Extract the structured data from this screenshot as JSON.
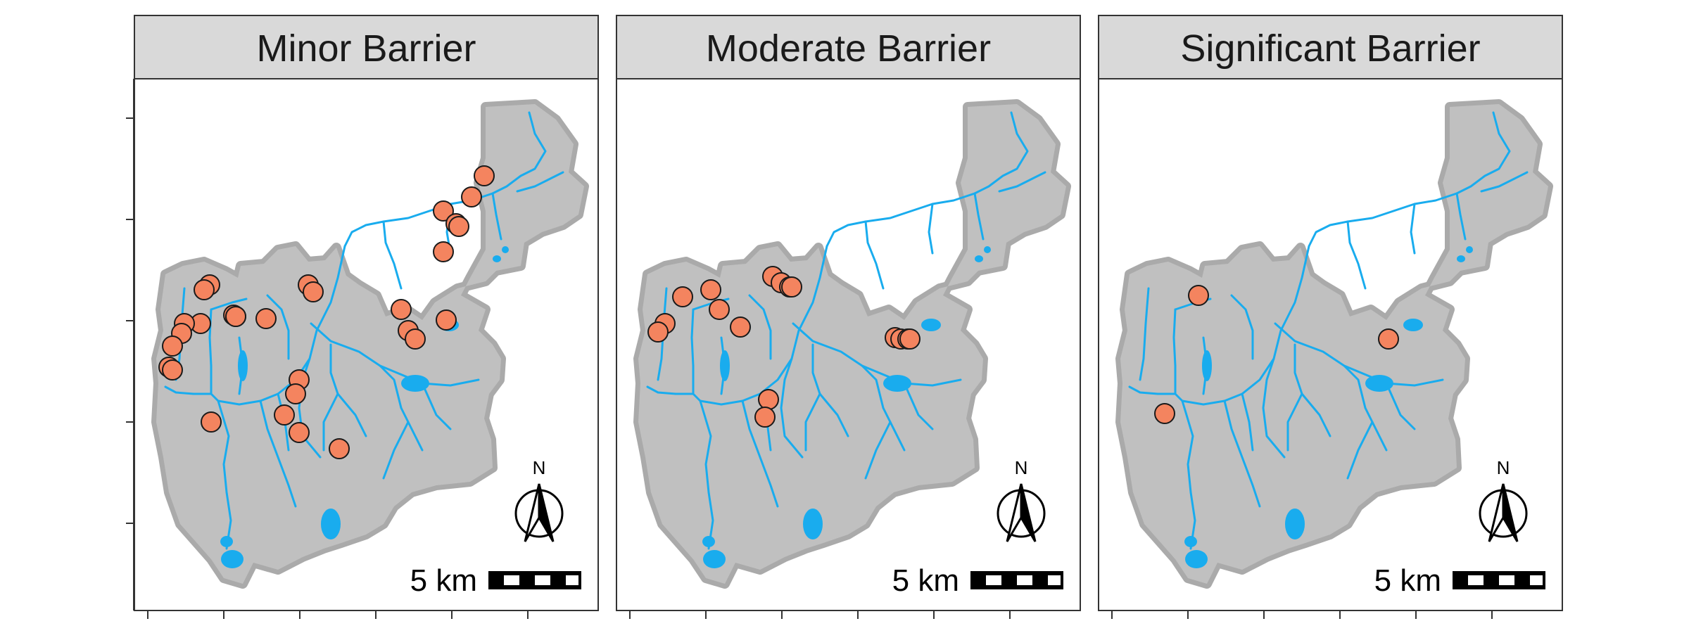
{
  "figure": {
    "panels": [
      {
        "id": "minor",
        "title": "Minor Barrier",
        "points": [
          [
            688,
            250
          ],
          [
            670,
            280
          ],
          [
            630,
            300
          ],
          [
            648,
            318
          ],
          [
            652,
            322
          ],
          [
            630,
            358
          ],
          [
            570,
            440
          ],
          [
            580,
            470
          ],
          [
            590,
            482
          ],
          [
            634,
            455
          ],
          [
            438,
            405
          ],
          [
            445,
            415
          ],
          [
            378,
            453
          ],
          [
            298,
            405
          ],
          [
            290,
            412
          ],
          [
            332,
            448
          ],
          [
            335,
            450
          ],
          [
            285,
            460
          ],
          [
            262,
            460
          ],
          [
            258,
            474
          ],
          [
            245,
            492
          ],
          [
            240,
            522
          ],
          [
            245,
            526
          ],
          [
            300,
            600
          ],
          [
            425,
            540
          ],
          [
            420,
            560
          ],
          [
            404,
            590
          ],
          [
            482,
            638
          ],
          [
            425,
            615
          ],
          [
            335,
            450
          ]
        ]
      },
      {
        "id": "moderate",
        "title": "Moderate Barrier",
        "points": [
          [
            1098,
            393
          ],
          [
            1110,
            402
          ],
          [
            1122,
            408
          ],
          [
            1125,
            408
          ],
          [
            970,
            422
          ],
          [
            1010,
            412
          ],
          [
            1022,
            440
          ],
          [
            1052,
            465
          ],
          [
            945,
            460
          ],
          [
            935,
            472
          ],
          [
            1272,
            480
          ],
          [
            1280,
            482
          ],
          [
            1290,
            482
          ],
          [
            1293,
            482
          ],
          [
            1092,
            568
          ],
          [
            1087,
            593
          ]
        ]
      },
      {
        "id": "significant",
        "title": "Significant Barrier",
        "points": [
          [
            1703,
            420
          ],
          [
            1973,
            482
          ],
          [
            1655,
            588
          ]
        ]
      }
    ],
    "scale_bar_label": "5 km",
    "north_arrow_label": "N",
    "colors": {
      "point_fill": "#F4845F",
      "point_stroke": "#1a1a1a",
      "water": "#19ACEE",
      "land": "#C0C0C0",
      "land_edge": "#AAAAAA",
      "strip": "#D9D9D9"
    }
  }
}
